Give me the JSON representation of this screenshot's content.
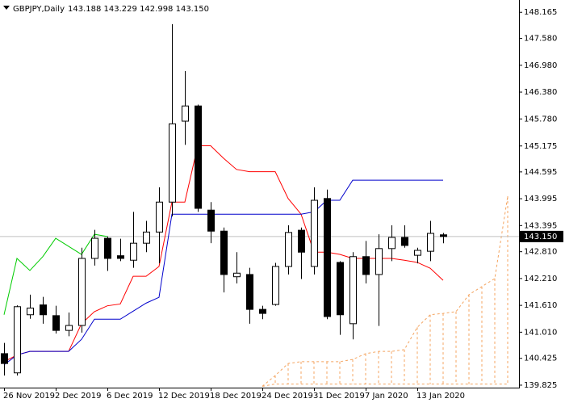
{
  "chart_data": {
    "type": "candlestick",
    "title": "GBPJPY,Daily",
    "subtitle": "143.188 143.229 142.998 143.150",
    "categories": [
      "26 Nov 2019",
      null,
      null,
      null,
      "2 Dec 2019",
      null,
      null,
      null,
      "6 Dec 2019",
      null,
      null,
      null,
      "12 Dec 2019",
      null,
      null,
      null,
      "18 Dec 2019",
      null,
      null,
      null,
      "24 Dec 2019",
      null,
      null,
      null,
      "31 Dec 2019",
      null,
      null,
      null,
      "7 Jan 2020",
      null,
      null,
      null,
      "13 Jan 2020",
      null,
      null,
      null,
      null,
      null,
      null,
      null
    ],
    "open": [
      140.53,
      140.1,
      141.4,
      141.62,
      141.38,
      141.05,
      141.16,
      142.66,
      143.11,
      142.72,
      142.62,
      143.0,
      143.25,
      143.92,
      145.73,
      146.07,
      143.74,
      143.27,
      142.25,
      142.3,
      141.52,
      141.63,
      142.48,
      143.29,
      142.48,
      144.0,
      142.57,
      141.2,
      142.7,
      142.3,
      142.88,
      143.13,
      142.73,
      142.82,
      143.188,
      null,
      null,
      null,
      null,
      null
    ],
    "high": [
      140.77,
      141.61,
      141.85,
      141.8,
      141.6,
      141.45,
      142.9,
      143.3,
      143.15,
      143.1,
      143.7,
      143.5,
      144.25,
      147.9,
      146.85,
      146.1,
      143.92,
      143.35,
      142.8,
      142.45,
      141.6,
      142.56,
      143.4,
      143.35,
      144.25,
      144.2,
      142.6,
      142.8,
      143.05,
      143.2,
      143.4,
      143.4,
      142.9,
      143.5,
      143.229,
      null,
      null,
      null,
      null,
      null
    ],
    "low": [
      140.04,
      140.04,
      141.31,
      141.2,
      140.98,
      140.92,
      141.0,
      142.5,
      142.38,
      142.6,
      142.45,
      142.8,
      142.55,
      143.6,
      145.2,
      143.7,
      143.0,
      141.9,
      142.1,
      141.2,
      141.3,
      141.6,
      142.3,
      142.2,
      142.3,
      141.3,
      140.95,
      140.85,
      142.1,
      141.15,
      142.6,
      142.9,
      142.55,
      142.6,
      142.998,
      null,
      null,
      null,
      null,
      null
    ],
    "close": [
      140.31,
      141.58,
      141.55,
      141.4,
      141.05,
      141.16,
      142.66,
      143.11,
      142.66,
      142.66,
      143.0,
      143.25,
      143.92,
      145.67,
      146.07,
      143.78,
      143.27,
      142.3,
      142.33,
      141.52,
      141.43,
      142.48,
      143.24,
      142.8,
      143.96,
      141.36,
      141.4,
      142.7,
      142.3,
      142.88,
      143.13,
      142.95,
      142.84,
      143.22,
      143.15,
      null,
      null,
      null,
      null,
      null
    ],
    "up_color": "#ffffff",
    "down_color": "#000000",
    "series": [
      {
        "color": "#ff0000",
        "values": [
          140.35,
          140.5,
          140.58,
          140.58,
          140.58,
          140.58,
          141.2,
          141.47,
          141.6,
          141.64,
          142.26,
          142.26,
          142.48,
          143.92,
          143.92,
          145.18,
          145.18,
          144.9,
          144.65,
          144.6,
          144.6,
          144.6,
          144.0,
          143.65,
          142.8,
          142.8,
          142.75,
          142.66,
          142.66,
          142.66,
          142.66,
          142.62,
          142.57,
          142.44,
          142.17,
          null,
          null,
          null,
          null,
          null
        ]
      },
      {
        "color": "#0000cc",
        "values": [
          140.28,
          140.5,
          140.58,
          140.58,
          140.58,
          140.58,
          140.85,
          141.3,
          141.3,
          141.3,
          141.48,
          141.66,
          141.79,
          143.65,
          143.65,
          143.65,
          143.65,
          143.65,
          143.65,
          143.65,
          143.65,
          143.65,
          143.65,
          143.65,
          143.7,
          143.96,
          143.96,
          144.41,
          144.41,
          144.41,
          144.41,
          144.41,
          144.41,
          144.41,
          144.41,
          null,
          null,
          null,
          null,
          null
        ]
      },
      {
        "color": "#00cc00",
        "values": [
          141.4,
          142.66,
          142.39,
          142.7,
          143.11,
          142.93,
          142.75,
          143.2,
          143.15,
          null,
          null,
          null,
          null,
          null,
          null,
          null,
          null,
          null,
          null,
          null,
          null,
          null,
          null,
          null,
          null,
          null,
          null,
          null,
          null,
          null,
          null,
          null,
          null,
          null,
          null,
          null,
          null,
          null,
          null,
          null
        ]
      }
    ],
    "cloud": {
      "color": "#f4a460",
      "span_a": [
        null,
        null,
        null,
        null,
        null,
        null,
        null,
        null,
        null,
        null,
        null,
        null,
        null,
        null,
        null,
        null,
        null,
        null,
        null,
        null,
        139.8,
        140.04,
        140.31,
        140.35,
        140.35,
        140.35,
        140.35,
        140.4,
        140.53,
        140.58,
        140.58,
        140.62,
        141.12,
        141.4,
        141.43,
        141.47,
        141.85,
        142.03,
        142.21,
        144.05
      ],
      "span_b": [
        null,
        null,
        null,
        null,
        null,
        null,
        null,
        null,
        null,
        null,
        null,
        null,
        null,
        null,
        null,
        null,
        null,
        null,
        null,
        null,
        139.8,
        139.85,
        139.85,
        139.85,
        139.85,
        139.85,
        139.85,
        139.85,
        139.85,
        139.85,
        139.85,
        139.85,
        139.85,
        139.85,
        139.85,
        139.85,
        139.85,
        139.85,
        139.85,
        139.85
      ]
    },
    "price_label": {
      "value": 143.15,
      "label": "143.150"
    },
    "ylim": [
      139.77,
      148.44
    ],
    "yticks": [
      148.165,
      {
        "value": 147.58,
        "label": "147.580"
      },
      {
        "value": 146.98,
        "label": "146.980"
      },
      {
        "value": 146.38,
        "label": "146.380"
      },
      {
        "value": 145.78,
        "label": "145.780"
      },
      145.175,
      144.595,
      143.995,
      143.395,
      {
        "value": 142.81,
        "label": "142.810"
      },
      {
        "value": 142.21,
        "label": "142.210"
      },
      {
        "value": 141.61,
        "label": "141.610"
      },
      {
        "value": 141.01,
        "label": "141.010"
      },
      140.425,
      139.825
    ]
  }
}
